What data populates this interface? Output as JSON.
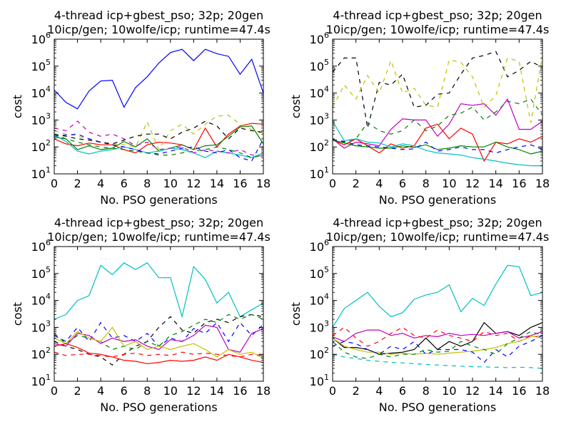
{
  "chart_data": [
    {
      "type": "line",
      "title": [
        "4-thread icp+gbest_pso; 32p; 20gen",
        "10icp/gen; 10wolfe/icp; runtime=47.4s"
      ],
      "xlabel": "No. PSO generations",
      "ylabel": "cost",
      "xlim": [
        0,
        18
      ],
      "ylim": [
        10,
        1000000
      ],
      "yscale": "log",
      "xticks": [
        0,
        2,
        4,
        6,
        8,
        10,
        12,
        14,
        16,
        18
      ],
      "yticks": [
        10,
        100,
        1000,
        10000,
        100000,
        1000000
      ],
      "series": [
        {
          "color": "#0000ff",
          "style": "solid",
          "values": [
            13000,
            4500,
            2600,
            12000,
            28000,
            30000,
            3000,
            16000,
            40000,
            130000,
            320000,
            420000,
            160000,
            420000,
            290000,
            230000,
            50000,
            180000,
            10000
          ]
        },
        {
          "color": "#ff0000",
          "style": "solid",
          "values": [
            200,
            130,
            110,
            140,
            120,
            120,
            80,
            60,
            120,
            150,
            140,
            120,
            80,
            500,
            100,
            300,
            600,
            750,
            700
          ]
        },
        {
          "color": "#007f00",
          "style": "solid",
          "values": [
            230,
            200,
            80,
            110,
            80,
            90,
            160,
            100,
            200,
            70,
            90,
            120,
            80,
            110,
            120,
            250,
            550,
            600,
            130
          ]
        },
        {
          "color": "#00bfbf",
          "style": "solid",
          "values": [
            280,
            160,
            70,
            55,
            70,
            80,
            100,
            80,
            60,
            70,
            90,
            80,
            60,
            40,
            70,
            60,
            50,
            40,
            60
          ]
        },
        {
          "color": "#bf00bf",
          "style": "dashed",
          "values": [
            500,
            400,
            900,
            350,
            250,
            300,
            200,
            110,
            150,
            80,
            90,
            100,
            60,
            80,
            70,
            60,
            80,
            50,
            45
          ]
        },
        {
          "color": "#bfbf00",
          "style": "dashed",
          "values": [
            400,
            300,
            250,
            200,
            150,
            130,
            120,
            100,
            850,
            80,
            400,
            700,
            300,
            700,
            1400,
            1500,
            700,
            450,
            300
          ]
        },
        {
          "color": "#000000",
          "style": "dashed",
          "values": [
            300,
            250,
            200,
            180,
            150,
            130,
            180,
            250,
            300,
            300,
            200,
            350,
            500,
            900,
            600,
            200,
            500,
            400,
            350
          ]
        },
        {
          "color": "#0000ff",
          "style": "dashed",
          "values": [
            250,
            280,
            300,
            200,
            150,
            120,
            100,
            80,
            60,
            55,
            70,
            90,
            100,
            70,
            60,
            80,
            40,
            30,
            200
          ]
        },
        {
          "color": "#007f00",
          "style": "dashed",
          "values": [
            300,
            200,
            150,
            120,
            100,
            90,
            80,
            70,
            60,
            50,
            50,
            60,
            70,
            80,
            100,
            80,
            60,
            40,
            50
          ]
        }
      ]
    },
    {
      "type": "line",
      "title": [
        "4-thread icp+gbest_pso; 32p; 20gen",
        "10icp/gen; 10wolfe/icp; runtime=47.4s"
      ],
      "xlabel": "No. PSO generations",
      "ylabel": "cost",
      "xlim": [
        0,
        18
      ],
      "ylim": [
        10,
        1000000
      ],
      "yscale": "log",
      "xticks": [
        0,
        2,
        4,
        6,
        8,
        10,
        12,
        14,
        16,
        18
      ],
      "yticks": [
        10,
        100,
        1000,
        10000,
        100000,
        1000000
      ],
      "series": [
        {
          "color": "#000000",
          "style": "dashed",
          "values": [
            60000,
            200000,
            200000,
            500,
            25000,
            20000,
            50000,
            3000,
            3500,
            9000,
            10000,
            50000,
            200000,
            250000,
            350000,
            40000,
            70000,
            150000,
            90000
          ]
        },
        {
          "color": "#bfbf00",
          "style": "dashed",
          "values": [
            3000,
            20000,
            6000,
            45000,
            10000,
            160000,
            10000,
            15000,
            3500,
            3000,
            170000,
            140000,
            40000,
            3000,
            8000,
            200000,
            150000,
            800,
            250000
          ]
        },
        {
          "color": "#bf00bf",
          "style": "solid",
          "values": [
            200,
            90,
            150,
            130,
            110,
            450,
            1100,
            1000,
            1000,
            250,
            700,
            4000,
            3500,
            4000,
            1500,
            6000,
            450,
            450,
            900
          ]
        },
        {
          "color": "#007f00",
          "style": "dashed",
          "values": [
            190,
            150,
            200,
            800,
            400,
            300,
            400,
            1000,
            400,
            600,
            1500,
            1800,
            3000,
            1000,
            2000,
            5000,
            4000,
            6000,
            1500
          ]
        },
        {
          "color": "#ff0000",
          "style": "solid",
          "values": [
            180,
            120,
            200,
            110,
            60,
            130,
            90,
            110,
            500,
            700,
            200,
            500,
            300,
            30,
            150,
            130,
            200,
            150,
            250
          ]
        },
        {
          "color": "#007f00",
          "style": "solid",
          "values": [
            180,
            140,
            110,
            100,
            90,
            90,
            110,
            95,
            120,
            80,
            90,
            110,
            100,
            100,
            150,
            100,
            80,
            55,
            70
          ]
        },
        {
          "color": "#00bfbf",
          "style": "solid",
          "values": [
            900,
            170,
            200,
            150,
            140,
            100,
            130,
            110,
            75,
            60,
            55,
            50,
            40,
            35,
            30,
            25,
            22,
            20,
            20
          ]
        },
        {
          "color": "#0000ff",
          "style": "dashed",
          "values": [
            190,
            160,
            120,
            110,
            100,
            90,
            80,
            85,
            150,
            70,
            80,
            100,
            80,
            80,
            60,
            80,
            100,
            120,
            80
          ]
        }
      ]
    },
    {
      "type": "line",
      "title": [
        "4-thread icp+gbest_pso; 32p; 20gen",
        "10icp/gen; 10wolfe/icp; runtime=47.4s"
      ],
      "xlabel": "No. PSO generations",
      "ylabel": "cost",
      "xlim": [
        0,
        18
      ],
      "ylim": [
        10,
        1000000
      ],
      "yscale": "log",
      "xticks": [
        0,
        2,
        4,
        6,
        8,
        10,
        12,
        14,
        16,
        18
      ],
      "yticks": [
        10,
        100,
        1000,
        10000,
        100000,
        1000000
      ],
      "series": [
        {
          "color": "#00bfbf",
          "style": "solid",
          "values": [
            2000,
            3000,
            10000,
            15000,
            200000,
            90000,
            250000,
            140000,
            250000,
            70000,
            70000,
            2500,
            180000,
            60000,
            8000,
            20000,
            2500,
            4500,
            8000
          ]
        },
        {
          "color": "#0000ff",
          "style": "dashed",
          "values": [
            500,
            300,
            1000,
            300,
            1500,
            400,
            500,
            300,
            600,
            200,
            400,
            300,
            900,
            600,
            1500,
            300,
            1500,
            500,
            1300
          ]
        },
        {
          "color": "#000000",
          "style": "dashed",
          "values": [
            300,
            200,
            150,
            100,
            80,
            40,
            100,
            200,
            300,
            1000,
            2500,
            800,
            600,
            1500,
            2000,
            1500,
            2500,
            3000,
            2500
          ]
        },
        {
          "color": "#007f00",
          "style": "dashed",
          "values": [
            600,
            250,
            500,
            400,
            300,
            150,
            200,
            150,
            300,
            200,
            500,
            700,
            1200,
            2000,
            1500,
            3000,
            2000,
            3000,
            2000
          ]
        },
        {
          "color": "#bf00bf",
          "style": "solid",
          "values": [
            250,
            200,
            600,
            500,
            250,
            400,
            300,
            350,
            200,
            150,
            350,
            300,
            500,
            1200,
            1000,
            150,
            120,
            600,
            900
          ]
        },
        {
          "color": "#bfbf00",
          "style": "solid",
          "values": [
            400,
            250,
            700,
            400,
            300,
            1000,
            200,
            300,
            150,
            200,
            150,
            200,
            250,
            150,
            80,
            150,
            100,
            120,
            70
          ]
        },
        {
          "color": "#ff0000",
          "style": "solid",
          "values": [
            200,
            250,
            180,
            110,
            100,
            80,
            60,
            55,
            45,
            50,
            60,
            55,
            60,
            80,
            60,
            100,
            80,
            60,
            50
          ]
        },
        {
          "color": "#ff0000",
          "style": "dashed",
          "values": [
            120,
            90,
            100,
            100,
            90,
            80,
            100,
            110,
            90,
            100,
            90,
            120,
            100,
            110,
            100,
            90,
            80,
            100,
            90
          ]
        }
      ]
    },
    {
      "type": "line",
      "title": [
        "4-thread icp+gbest_pso; 32p; 20gen",
        "10icp/gen; 10wolfe/icp; runtime=47.4s"
      ],
      "xlabel": "No. PSO generations",
      "ylabel": "cost",
      "xlim": [
        0,
        18
      ],
      "ylim": [
        10,
        1000000
      ],
      "yscale": "log",
      "xticks": [
        0,
        2,
        4,
        6,
        8,
        10,
        12,
        14,
        16,
        18
      ],
      "yticks": [
        10,
        100,
        1000,
        10000,
        100000,
        1000000
      ],
      "series": [
        {
          "color": "#00bfbf",
          "style": "solid",
          "values": [
            1000,
            5000,
            10000,
            20000,
            6000,
            2500,
            3500,
            11000,
            16000,
            20000,
            38000,
            3800,
            12000,
            6500,
            40000,
            200000,
            180000,
            15000,
            20000
          ]
        },
        {
          "color": "#000000",
          "style": "solid",
          "values": [
            400,
            180,
            180,
            150,
            100,
            110,
            120,
            150,
            400,
            150,
            300,
            200,
            300,
            1500,
            600,
            700,
            500,
            1000,
            1500
          ]
        },
        {
          "color": "#bf00bf",
          "style": "solid",
          "values": [
            450,
            300,
            600,
            800,
            800,
            500,
            600,
            400,
            500,
            450,
            600,
            500,
            550,
            500,
            600,
            700,
            400,
            500,
            700
          ]
        },
        {
          "color": "#ff0000",
          "style": "dashed",
          "values": [
            500,
            1000,
            400,
            200,
            300,
            600,
            1000,
            500,
            400,
            800,
            500,
            400,
            300,
            700,
            500,
            600,
            300,
            500,
            400
          ]
        },
        {
          "color": "#bfbf00",
          "style": "solid",
          "values": [
            400,
            200,
            150,
            120,
            120,
            100,
            110,
            100,
            110,
            100,
            110,
            120,
            130,
            150,
            180,
            250,
            300,
            450,
            500
          ]
        },
        {
          "color": "#0000ff",
          "style": "dashed",
          "values": [
            200,
            300,
            250,
            150,
            100,
            200,
            150,
            300,
            100,
            150,
            150,
            150,
            120,
            50,
            150,
            80,
            200,
            300,
            500
          ]
        },
        {
          "color": "#007f00",
          "style": "dashed",
          "values": [
            300,
            120,
            80,
            70,
            100,
            80,
            100,
            100,
            150,
            120,
            130,
            300,
            200,
            150,
            100,
            250,
            400,
            700,
            500
          ]
        },
        {
          "color": "#00bfbf",
          "style": "dashed",
          "values": [
            100,
            80,
            70,
            60,
            55,
            50,
            48,
            45,
            42,
            40,
            38,
            36,
            35,
            34,
            33,
            32,
            33,
            32,
            30
          ]
        }
      ]
    }
  ]
}
